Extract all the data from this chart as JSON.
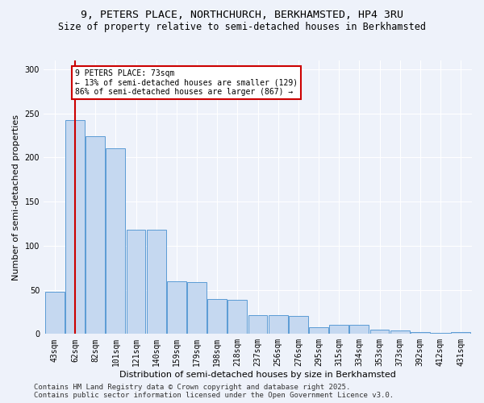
{
  "title_line1": "9, PETERS PLACE, NORTHCHURCH, BERKHAMSTED, HP4 3RU",
  "title_line2": "Size of property relative to semi-detached houses in Berkhamsted",
  "xlabel": "Distribution of semi-detached houses by size in Berkhamsted",
  "ylabel": "Number of semi-detached properties",
  "categories": [
    "43sqm",
    "62sqm",
    "82sqm",
    "101sqm",
    "121sqm",
    "140sqm",
    "159sqm",
    "179sqm",
    "198sqm",
    "218sqm",
    "237sqm",
    "256sqm",
    "276sqm",
    "295sqm",
    "315sqm",
    "334sqm",
    "353sqm",
    "373sqm",
    "392sqm",
    "412sqm",
    "431sqm"
  ],
  "values": [
    48,
    242,
    224,
    210,
    118,
    118,
    60,
    59,
    40,
    39,
    21,
    21,
    20,
    8,
    10,
    10,
    5,
    4,
    2,
    1,
    2
  ],
  "bar_color": "#c5d8f0",
  "bar_edge_color": "#5b9bd5",
  "vline_color": "#cc0000",
  "vline_pos": 1.5,
  "annotation_text": "9 PETERS PLACE: 73sqm\n← 13% of semi-detached houses are smaller (129)\n86% of semi-detached houses are larger (867) →",
  "annotation_box_color": "#ffffff",
  "annotation_box_edge": "#cc0000",
  "footer_text": "Contains HM Land Registry data © Crown copyright and database right 2025.\nContains public sector information licensed under the Open Government Licence v3.0.",
  "ylim": [
    0,
    310
  ],
  "yticks": [
    0,
    50,
    100,
    150,
    200,
    250,
    300
  ],
  "background_color": "#eef2fa",
  "grid_color": "#ffffff",
  "title_fontsize": 9.5,
  "subtitle_fontsize": 8.5,
  "axis_label_fontsize": 8,
  "tick_fontsize": 7,
  "footer_fontsize": 6.5,
  "annotation_fontsize": 7
}
